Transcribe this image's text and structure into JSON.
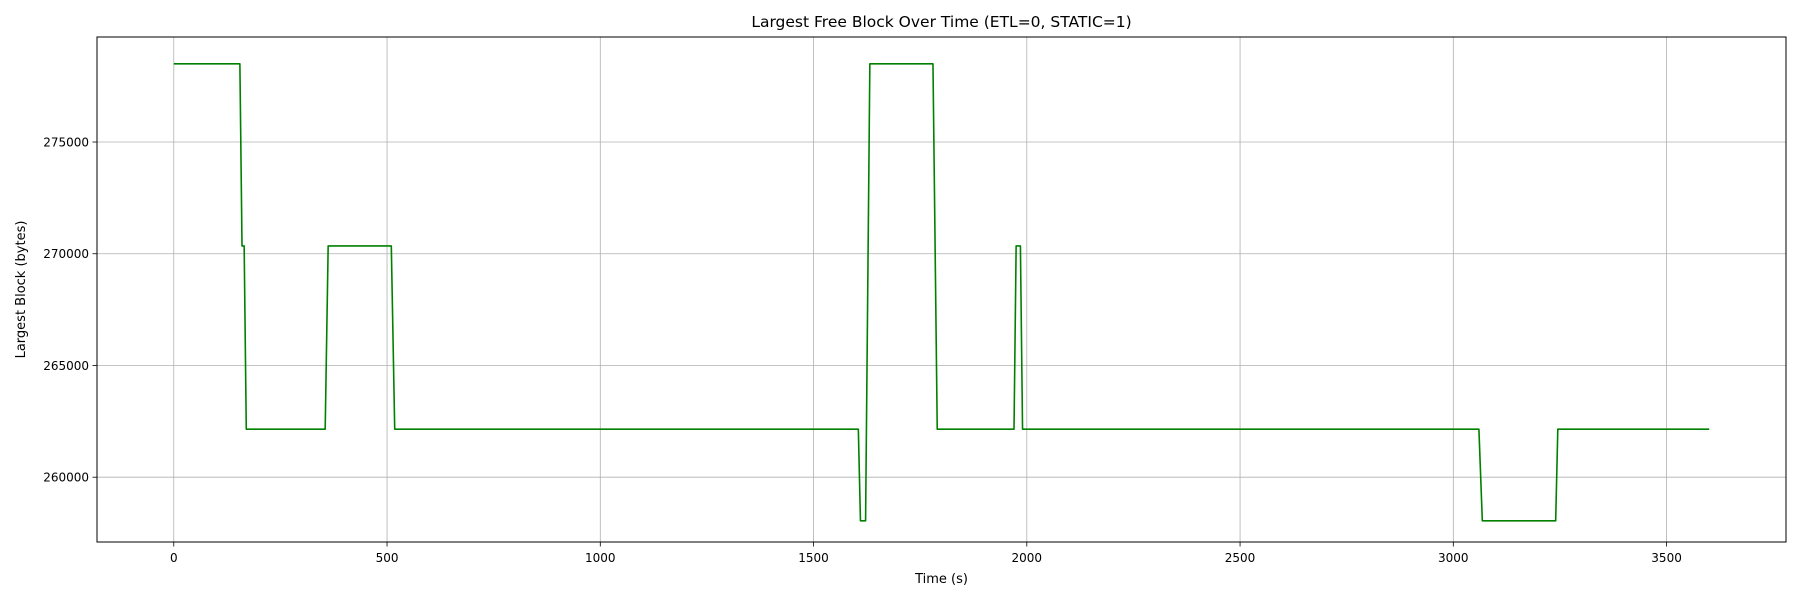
{
  "chart_data": {
    "type": "line",
    "title": "Largest Free Block Over Time (ETL=0, STATIC=1)",
    "xlabel": "Time (s)",
    "ylabel": "Largest Block (bytes)",
    "xlim": [
      -180,
      3780
    ],
    "ylim": [
      257100,
      279700
    ],
    "xticks": [
      0,
      500,
      1000,
      1500,
      2000,
      2500,
      3000,
      3500
    ],
    "yticks": [
      260000,
      265000,
      270000,
      275000
    ],
    "grid": true,
    "legend": "none",
    "series": [
      {
        "color": "#008000",
        "points": [
          [
            0,
            278500
          ],
          [
            155,
            278500
          ],
          [
            160,
            270350
          ],
          [
            165,
            270350
          ],
          [
            170,
            262150
          ],
          [
            355,
            262150
          ],
          [
            362,
            270350
          ],
          [
            510,
            270350
          ],
          [
            518,
            262150
          ],
          [
            1605,
            262150
          ],
          [
            1610,
            258050
          ],
          [
            1622,
            258050
          ],
          [
            1632,
            278500
          ],
          [
            1780,
            278500
          ],
          [
            1790,
            262150
          ],
          [
            1970,
            262150
          ],
          [
            1975,
            270350
          ],
          [
            1985,
            270350
          ],
          [
            1990,
            262150
          ],
          [
            3060,
            262150
          ],
          [
            3068,
            258050
          ],
          [
            3240,
            258050
          ],
          [
            3245,
            262150
          ],
          [
            3600,
            262150
          ]
        ]
      }
    ]
  }
}
